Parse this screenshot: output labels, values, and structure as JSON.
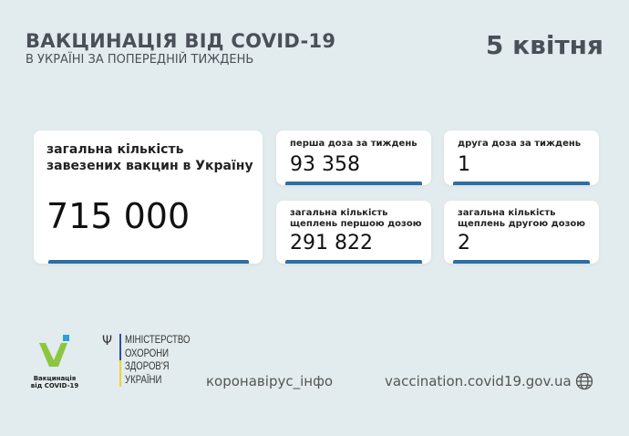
{
  "header": {
    "title": "ВАКЦИНАЦІЯ ВІД COVID-19",
    "subtitle": "В УКРАЇНІ ЗА ПОПЕРЕДНІЙ ТИЖДЕНЬ",
    "date": "5 квітня"
  },
  "main_card": {
    "label": "загальна кількість завезених вакцин в Україну",
    "value": "715 000"
  },
  "cards": [
    {
      "label": "перша доза за тиждень",
      "value": "93 358"
    },
    {
      "label": "друга доза за тиждень",
      "value": "1"
    },
    {
      "label": "загальна кількість щеплень першою дозою",
      "value": "291 822"
    },
    {
      "label": "загальна кількість щеплень другою дозою",
      "value": "2"
    }
  ],
  "footer": {
    "logo_text_1": "Вакцинація",
    "logo_text_2": "від COVID-19",
    "ministry": [
      "МІНІСТЕРСТВО",
      "ОХОРОНИ",
      "ЗДОРОВ'Я",
      "УКРАЇНИ"
    ],
    "hashtag": "коронавірус_інфо",
    "url": "vaccination.covid19.gov.ua",
    "globe_icon": "globe-icon"
  },
  "colors": {
    "accent": "#2e6ea6",
    "background": "#e2ebed",
    "logo_green": "#8cc63f",
    "logo_blue": "#2aa0d8"
  }
}
